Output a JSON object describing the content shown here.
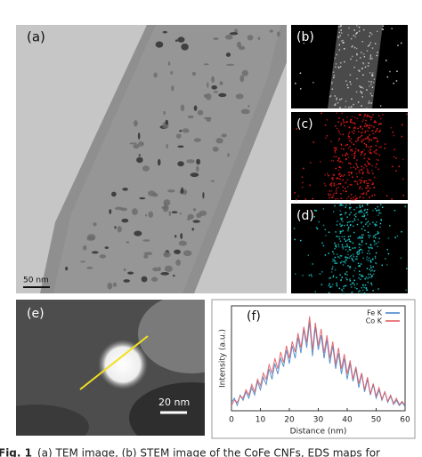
{
  "panels": {
    "a": {
      "label": "(a)",
      "scale_bar": "50 nm"
    },
    "b": {
      "label": "(b)"
    },
    "c": {
      "label": "(c)"
    },
    "d": {
      "label": "(d)"
    },
    "e": {
      "label": "(e)",
      "scale_bar": "20 nm"
    }
  },
  "chart_data": {
    "type": "line",
    "title": "(f)",
    "x_label": "Distance (nm)",
    "y_label": "Intensity (a.u.)",
    "x": [
      0,
      1,
      2,
      3,
      4,
      5,
      6,
      7,
      8,
      9,
      10,
      11,
      12,
      13,
      14,
      15,
      16,
      17,
      18,
      19,
      20,
      21,
      22,
      23,
      24,
      25,
      26,
      27,
      28,
      29,
      30,
      31,
      32,
      33,
      34,
      35,
      36,
      37,
      38,
      39,
      40,
      41,
      42,
      43,
      44,
      45,
      46,
      47,
      48,
      49,
      50,
      51,
      52,
      53,
      54,
      55,
      56,
      57,
      58,
      59,
      60
    ],
    "xlim": [
      0,
      60
    ],
    "xticks": [
      0,
      10,
      20,
      30,
      40,
      50,
      60
    ],
    "ylim": [
      0,
      1
    ],
    "series": [
      {
        "name": "Fe K",
        "color": "#3a7fc4",
        "values": [
          0.08,
          0.12,
          0.05,
          0.15,
          0.1,
          0.18,
          0.12,
          0.22,
          0.15,
          0.28,
          0.2,
          0.32,
          0.25,
          0.4,
          0.3,
          0.45,
          0.35,
          0.5,
          0.42,
          0.58,
          0.45,
          0.62,
          0.5,
          0.7,
          0.55,
          0.78,
          0.6,
          0.85,
          0.52,
          0.8,
          0.58,
          0.72,
          0.5,
          0.68,
          0.45,
          0.62,
          0.4,
          0.55,
          0.35,
          0.5,
          0.3,
          0.45,
          0.28,
          0.4,
          0.22,
          0.35,
          0.18,
          0.3,
          0.15,
          0.25,
          0.12,
          0.2,
          0.1,
          0.18,
          0.08,
          0.14,
          0.06,
          0.1,
          0.05,
          0.08,
          0.04
        ]
      },
      {
        "name": "Co K",
        "color": "#e0525a",
        "values": [
          0.05,
          0.1,
          0.08,
          0.14,
          0.12,
          0.2,
          0.15,
          0.25,
          0.18,
          0.3,
          0.24,
          0.36,
          0.3,
          0.44,
          0.36,
          0.5,
          0.4,
          0.56,
          0.46,
          0.62,
          0.5,
          0.66,
          0.56,
          0.74,
          0.6,
          0.8,
          0.65,
          0.9,
          0.58,
          0.84,
          0.62,
          0.78,
          0.55,
          0.72,
          0.5,
          0.66,
          0.44,
          0.6,
          0.4,
          0.54,
          0.35,
          0.48,
          0.3,
          0.42,
          0.26,
          0.36,
          0.2,
          0.32,
          0.16,
          0.26,
          0.14,
          0.22,
          0.11,
          0.18,
          0.09,
          0.15,
          0.07,
          0.12,
          0.06,
          0.09,
          0.05
        ]
      }
    ]
  },
  "caption": {
    "label": "Fig. 1",
    "text": "(a) TEM image, (b) STEM image of the CoFe CNFs, EDS maps for"
  }
}
